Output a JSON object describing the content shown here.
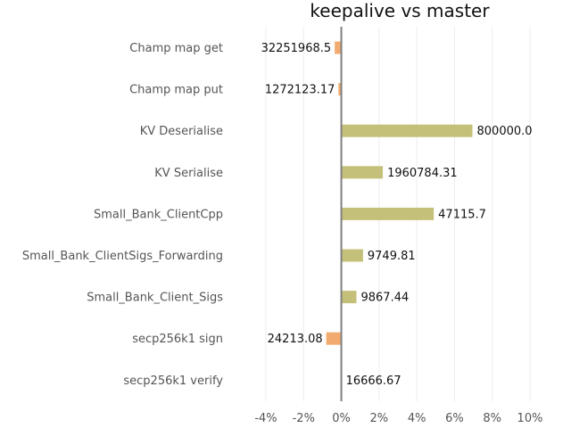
{
  "chart_data": {
    "type": "bar",
    "orientation": "horizontal",
    "title": "keepalive vs master",
    "xlabel": "",
    "ylabel": "",
    "xlim": [
      -4,
      10
    ],
    "grid": "vertical",
    "x_ticks": [
      -4,
      -2,
      0,
      2,
      4,
      6,
      8,
      10
    ],
    "x_tick_labels": [
      "-4%",
      "-2%",
      "0%",
      "2%",
      "4%",
      "6%",
      "8%",
      "10%"
    ],
    "categories": [
      "Champ map get",
      "Champ map put",
      "KV Deserialise",
      "KV Serialise",
      "Small_Bank_ClientCpp",
      "Small_Bank_ClientSigs_Forwarding",
      "Small_Bank_Client_Sigs",
      "secp256k1 sign",
      "secp256k1 verify"
    ],
    "values": [
      -0.35,
      -0.15,
      6.95,
      2.2,
      4.9,
      1.15,
      0.8,
      -0.8,
      0.0
    ],
    "value_labels": [
      "32251968.5",
      "1272123.17",
      "800000.0",
      "1960784.31",
      "47115.7",
      "9749.81",
      "9867.44",
      "24213.08",
      "16666.67"
    ],
    "colors": {
      "positive": "#c4c07a",
      "negative": "#f2ab6e",
      "zero_line": "#808080",
      "grid": "#ececec"
    }
  }
}
